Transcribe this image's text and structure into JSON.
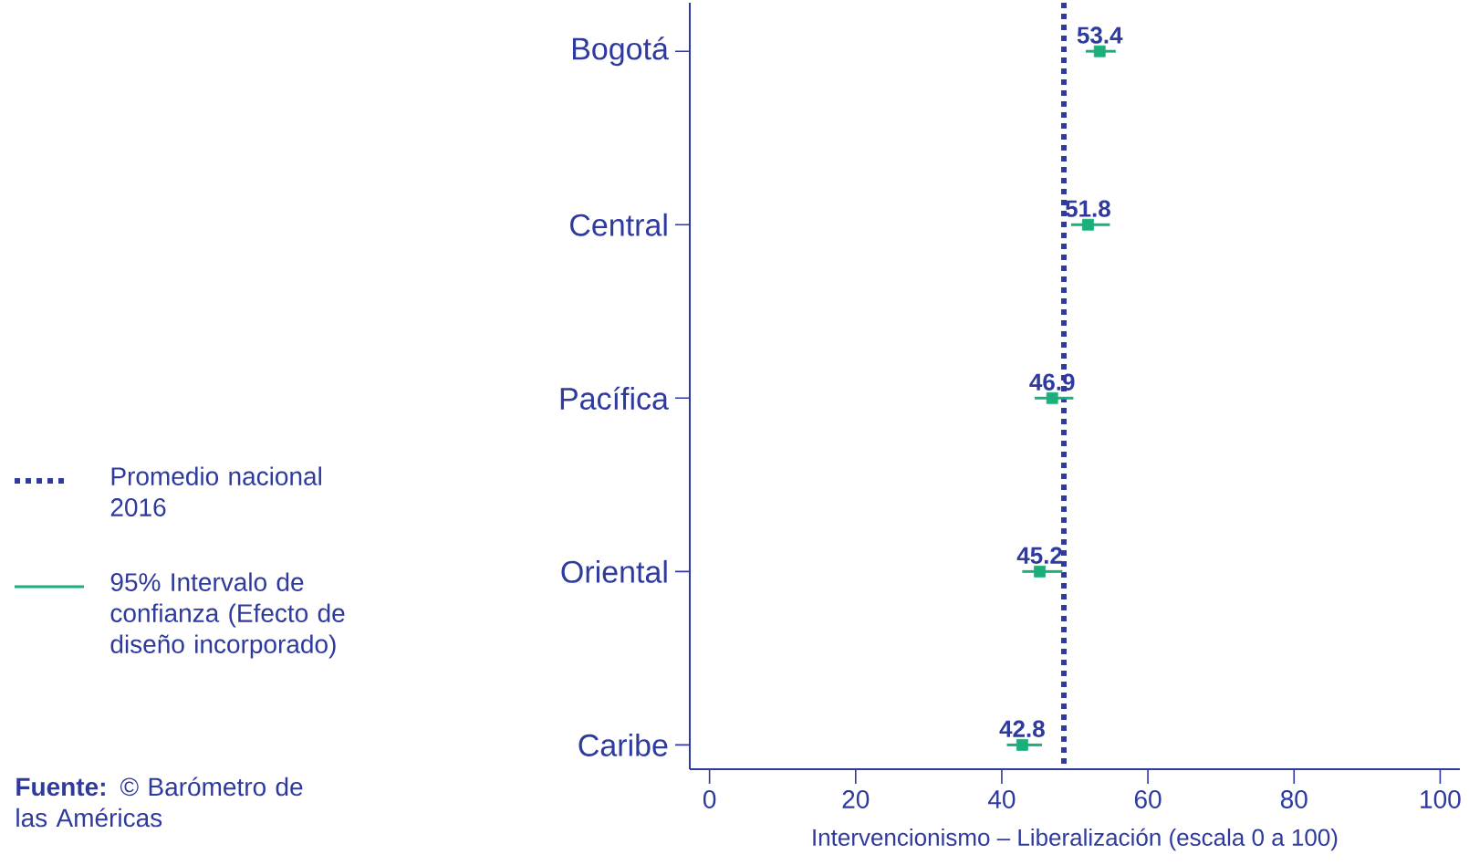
{
  "chart_data": {
    "type": "scatter",
    "orientation": "horizontal",
    "categories": [
      "Bogotá",
      "Central",
      "Pacífica",
      "Oriental",
      "Caribe"
    ],
    "series": [
      {
        "name": "95% Intervalo de confianza (Efecto de diseño incorporado)",
        "color": "#1bb07a",
        "values": [
          53.4,
          51.8,
          46.9,
          45.2,
          42.8
        ],
        "errors": [
          [
            51.5,
            55.6
          ],
          [
            49.5,
            54.8
          ],
          [
            44.5,
            49.8
          ],
          [
            42.8,
            48.3
          ],
          [
            40.7,
            45.5
          ]
        ]
      }
    ],
    "marker": "square",
    "data_labels": true,
    "xlim": [
      -2.7,
      102.7
    ],
    "xticks": [
      0,
      20,
      40,
      60,
      80,
      100
    ],
    "xlabel": "Intervencionismo – Liberalización (escala 0 a 100)",
    "ref_lines": [
      {
        "axis": "x",
        "value": 48.5,
        "label": "Promedio nacional 2016",
        "color": "#2e3a9e",
        "line_style": "dotted"
      }
    ],
    "legend": "left",
    "annotations": [
      "**Fuente:** © Barómetro de las Américas"
    ]
  }
}
